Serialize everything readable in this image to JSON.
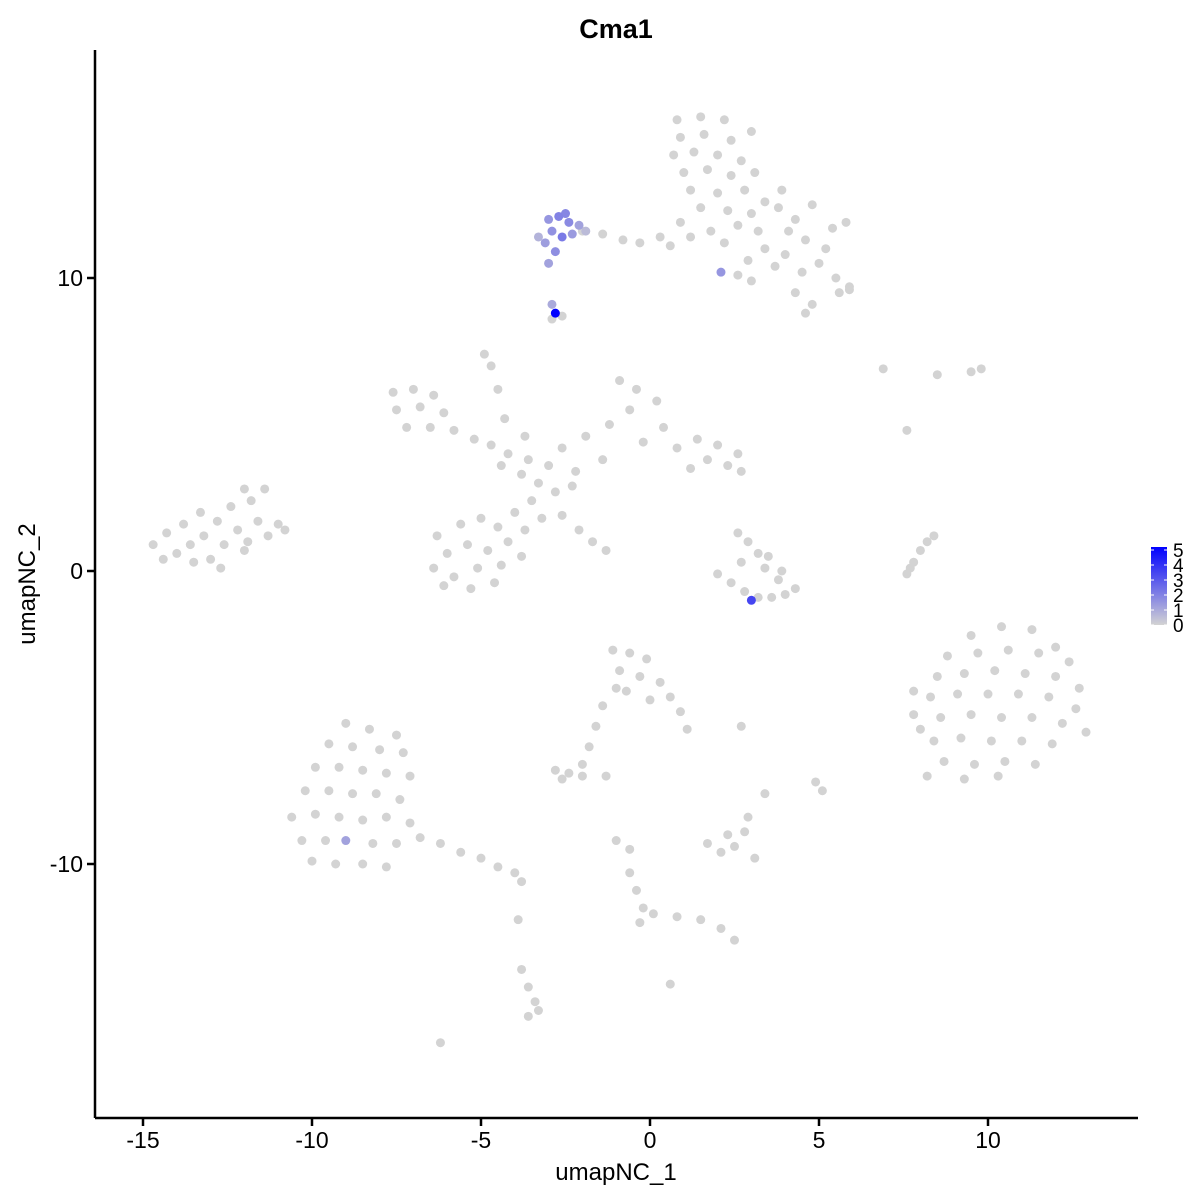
{
  "chart_data": {
    "type": "scatter",
    "title": "Cma1",
    "xlabel": "umapNC_1",
    "ylabel": "umapNC_2",
    "xlim": [
      -16.4,
      14.4
    ],
    "ylim": [
      -18.6,
      17.8
    ],
    "x_ticks": [
      -15,
      -10,
      -5,
      0,
      5,
      10
    ],
    "y_ticks": [
      -10,
      0,
      10
    ],
    "x_tick_labels": [
      "-15",
      "-10",
      "-5",
      "0",
      "5",
      "10"
    ],
    "y_tick_labels": [
      "-10",
      "0",
      "10"
    ],
    "grid": false,
    "color_scale": {
      "low": "#D3D3D3",
      "high": "#0000FF",
      "min": 0,
      "max": 5.2
    },
    "legend": {
      "placement": "right",
      "ticks": [
        0,
        1,
        2,
        3,
        4,
        5
      ],
      "labels": [
        "0",
        "1",
        "2",
        "3",
        "4",
        "5"
      ]
    },
    "cells_zero": [
      [
        0.8,
        15.4
      ],
      [
        1.5,
        15.5
      ],
      [
        2.2,
        15.4
      ],
      [
        0.9,
        14.8
      ],
      [
        1.6,
        14.9
      ],
      [
        2.4,
        14.7
      ],
      [
        3.0,
        15.0
      ],
      [
        0.7,
        14.2
      ],
      [
        1.3,
        14.3
      ],
      [
        2.0,
        14.2
      ],
      [
        2.7,
        14.0
      ],
      [
        1.0,
        13.6
      ],
      [
        1.7,
        13.7
      ],
      [
        2.4,
        13.5
      ],
      [
        3.1,
        13.6
      ],
      [
        1.2,
        13.0
      ],
      [
        2.0,
        12.9
      ],
      [
        2.8,
        13.0
      ],
      [
        3.4,
        12.6
      ],
      [
        1.5,
        12.4
      ],
      [
        2.3,
        12.3
      ],
      [
        3.0,
        12.2
      ],
      [
        3.8,
        12.4
      ],
      [
        4.3,
        12.0
      ],
      [
        4.8,
        12.5
      ],
      [
        5.4,
        11.7
      ],
      [
        5.8,
        11.9
      ],
      [
        4.6,
        11.3
      ],
      [
        5.2,
        11.0
      ],
      [
        4.0,
        10.8
      ],
      [
        4.5,
        10.2
      ],
      [
        5.0,
        10.5
      ],
      [
        5.5,
        10.0
      ],
      [
        5.9,
        9.7
      ],
      [
        4.3,
        9.5
      ],
      [
        4.8,
        9.1
      ],
      [
        3.7,
        10.4
      ],
      [
        3.2,
        11.6
      ],
      [
        2.6,
        11.8
      ],
      [
        1.8,
        11.6
      ],
      [
        1.2,
        11.4
      ],
      [
        0.9,
        11.9
      ],
      [
        2.2,
        11.2
      ],
      [
        2.9,
        10.6
      ],
      [
        3.4,
        11.0
      ],
      [
        4.1,
        11.6
      ],
      [
        5.6,
        9.5
      ],
      [
        4.6,
        8.8
      ],
      [
        5.9,
        9.6
      ],
      [
        3.9,
        13.0
      ],
      [
        -2.0,
        11.6
      ],
      [
        -1.4,
        11.5
      ],
      [
        -0.8,
        11.3
      ],
      [
        -0.3,
        11.2
      ],
      [
        0.3,
        11.4
      ],
      [
        0.6,
        11.1
      ],
      [
        2.6,
        10.1
      ],
      [
        3.0,
        9.9
      ],
      [
        -2.9,
        8.6
      ],
      [
        -2.6,
        8.7
      ],
      [
        -7.6,
        6.1
      ],
      [
        -7.0,
        6.2
      ],
      [
        -6.4,
        6.0
      ],
      [
        -7.5,
        5.5
      ],
      [
        -6.8,
        5.6
      ],
      [
        -6.1,
        5.4
      ],
      [
        -7.2,
        4.9
      ],
      [
        -6.5,
        4.9
      ],
      [
        -5.8,
        4.8
      ],
      [
        -5.2,
        4.5
      ],
      [
        -4.7,
        4.3
      ],
      [
        -4.2,
        4.0
      ],
      [
        -3.6,
        3.8
      ],
      [
        -3.0,
        3.6
      ],
      [
        -3.8,
        3.3
      ],
      [
        -3.3,
        3.0
      ],
      [
        -2.8,
        2.7
      ],
      [
        -2.3,
        2.9
      ],
      [
        -4.4,
        3.6
      ],
      [
        -4.9,
        7.4
      ],
      [
        -4.7,
        7.0
      ],
      [
        -4.5,
        6.2
      ],
      [
        -4.3,
        5.2
      ],
      [
        -3.7,
        4.6
      ],
      [
        -2.6,
        4.2
      ],
      [
        -1.9,
        4.6
      ],
      [
        -1.2,
        5.0
      ],
      [
        -0.6,
        5.5
      ],
      [
        -0.4,
        6.2
      ],
      [
        -0.9,
        6.5
      ],
      [
        0.2,
        5.8
      ],
      [
        0.4,
        4.9
      ],
      [
        -0.2,
        4.4
      ],
      [
        0.8,
        4.2
      ],
      [
        1.4,
        4.5
      ],
      [
        2.0,
        4.3
      ],
      [
        2.6,
        4.0
      ],
      [
        2.3,
        3.6
      ],
      [
        1.7,
        3.8
      ],
      [
        2.7,
        3.4
      ],
      [
        1.2,
        3.5
      ],
      [
        -1.4,
        3.8
      ],
      [
        -2.2,
        3.4
      ],
      [
        -3.5,
        2.4
      ],
      [
        -4.0,
        2.0
      ],
      [
        -4.5,
        1.5
      ],
      [
        -5.0,
        1.8
      ],
      [
        -5.6,
        1.6
      ],
      [
        -6.3,
        1.2
      ],
      [
        -6.0,
        0.6
      ],
      [
        -5.4,
        0.9
      ],
      [
        -4.8,
        0.7
      ],
      [
        -4.2,
        1.0
      ],
      [
        -3.7,
        1.4
      ],
      [
        -6.4,
        0.1
      ],
      [
        -5.8,
        -0.2
      ],
      [
        -5.1,
        0.1
      ],
      [
        -4.4,
        0.2
      ],
      [
        -3.8,
        0.5
      ],
      [
        -6.1,
        -0.5
      ],
      [
        -5.3,
        -0.6
      ],
      [
        -4.6,
        -0.4
      ],
      [
        -2.6,
        1.9
      ],
      [
        -2.1,
        1.4
      ],
      [
        -1.7,
        1.0
      ],
      [
        -1.3,
        0.7
      ],
      [
        -3.2,
        1.8
      ],
      [
        -14.7,
        0.9
      ],
      [
        -14.3,
        1.3
      ],
      [
        -14.0,
        0.6
      ],
      [
        -13.8,
        1.6
      ],
      [
        -13.6,
        0.9
      ],
      [
        -13.3,
        2.0
      ],
      [
        -13.2,
        1.2
      ],
      [
        -13.0,
        0.4
      ],
      [
        -12.8,
        1.7
      ],
      [
        -12.6,
        0.9
      ],
      [
        -12.4,
        2.2
      ],
      [
        -12.2,
        1.4
      ],
      [
        -12.0,
        0.7
      ],
      [
        -11.8,
        2.4
      ],
      [
        -11.6,
        1.7
      ],
      [
        -11.4,
        2.8
      ],
      [
        -11.3,
        1.2
      ],
      [
        -11.0,
        1.6
      ],
      [
        -10.8,
        1.4
      ],
      [
        -12.7,
        0.1
      ],
      [
        -13.5,
        0.3
      ],
      [
        -14.4,
        0.4
      ],
      [
        -12.0,
        2.8
      ],
      [
        -11.9,
        1.0
      ],
      [
        2.0,
        -0.1
      ],
      [
        2.4,
        -0.4
      ],
      [
        2.8,
        -0.7
      ],
      [
        3.2,
        -0.9
      ],
      [
        3.6,
        -0.9
      ],
      [
        4.0,
        -0.8
      ],
      [
        4.3,
        -0.6
      ],
      [
        3.8,
        -0.3
      ],
      [
        3.4,
        0.1
      ],
      [
        3.2,
        0.6
      ],
      [
        2.9,
        1.0
      ],
      [
        2.6,
        1.3
      ],
      [
        3.5,
        0.5
      ],
      [
        2.7,
        0.3
      ],
      [
        3.9,
        0.0
      ],
      [
        7.6,
        -0.1
      ],
      [
        7.8,
        0.3
      ],
      [
        8.0,
        0.7
      ],
      [
        8.2,
        1.0
      ],
      [
        8.4,
        1.2
      ],
      [
        7.7,
        0.1
      ],
      [
        9.5,
        -2.2
      ],
      [
        10.4,
        -1.9
      ],
      [
        11.3,
        -2.0
      ],
      [
        12.0,
        -2.6
      ],
      [
        8.8,
        -2.9
      ],
      [
        9.7,
        -2.8
      ],
      [
        10.6,
        -2.7
      ],
      [
        11.5,
        -2.8
      ],
      [
        12.4,
        -3.1
      ],
      [
        7.8,
        -4.1
      ],
      [
        8.5,
        -3.6
      ],
      [
        9.3,
        -3.5
      ],
      [
        10.2,
        -3.4
      ],
      [
        11.1,
        -3.5
      ],
      [
        12.0,
        -3.6
      ],
      [
        12.7,
        -4.0
      ],
      [
        8.3,
        -4.3
      ],
      [
        9.1,
        -4.2
      ],
      [
        10.0,
        -4.2
      ],
      [
        10.9,
        -4.2
      ],
      [
        11.8,
        -4.3
      ],
      [
        12.6,
        -4.7
      ],
      [
        8.6,
        -5.0
      ],
      [
        9.5,
        -4.9
      ],
      [
        10.4,
        -5.0
      ],
      [
        11.3,
        -5.0
      ],
      [
        12.2,
        -5.2
      ],
      [
        8.4,
        -5.8
      ],
      [
        9.2,
        -5.7
      ],
      [
        10.1,
        -5.8
      ],
      [
        11.0,
        -5.8
      ],
      [
        11.9,
        -5.9
      ],
      [
        8.7,
        -6.5
      ],
      [
        9.6,
        -6.6
      ],
      [
        10.5,
        -6.5
      ],
      [
        11.4,
        -6.6
      ],
      [
        8.2,
        -7.0
      ],
      [
        9.3,
        -7.1
      ],
      [
        10.3,
        -7.0
      ],
      [
        7.8,
        -4.9
      ],
      [
        8.0,
        -5.4
      ],
      [
        12.9,
        -5.5
      ],
      [
        -1.1,
        -2.7
      ],
      [
        -0.6,
        -2.8
      ],
      [
        -0.1,
        -3.0
      ],
      [
        -0.9,
        -3.4
      ],
      [
        -0.3,
        -3.6
      ],
      [
        0.3,
        -3.8
      ],
      [
        -0.7,
        -4.1
      ],
      [
        0.0,
        -4.4
      ],
      [
        0.6,
        -4.3
      ],
      [
        0.9,
        -4.8
      ],
      [
        1.1,
        -5.4
      ],
      [
        -1.0,
        -4.0
      ],
      [
        -1.4,
        -4.6
      ],
      [
        -1.6,
        -5.3
      ],
      [
        -1.8,
        -6.0
      ],
      [
        -2.0,
        -6.6
      ],
      [
        -2.8,
        -6.8
      ],
      [
        -2.4,
        -6.9
      ],
      [
        -2.0,
        -7.0
      ],
      [
        -2.6,
        -7.1
      ],
      [
        -9.0,
        -5.2
      ],
      [
        -8.3,
        -5.4
      ],
      [
        -7.5,
        -5.6
      ],
      [
        -9.5,
        -5.9
      ],
      [
        -8.8,
        -6.0
      ],
      [
        -8.0,
        -6.1
      ],
      [
        -7.3,
        -6.2
      ],
      [
        -9.9,
        -6.7
      ],
      [
        -9.2,
        -6.7
      ],
      [
        -8.5,
        -6.8
      ],
      [
        -7.8,
        -6.9
      ],
      [
        -7.1,
        -7.0
      ],
      [
        -10.2,
        -7.5
      ],
      [
        -9.5,
        -7.5
      ],
      [
        -8.8,
        -7.6
      ],
      [
        -8.1,
        -7.6
      ],
      [
        -7.4,
        -7.8
      ],
      [
        -10.6,
        -8.4
      ],
      [
        -9.9,
        -8.3
      ],
      [
        -9.2,
        -8.4
      ],
      [
        -8.5,
        -8.5
      ],
      [
        -7.8,
        -8.4
      ],
      [
        -7.1,
        -8.6
      ],
      [
        -10.3,
        -9.2
      ],
      [
        -9.6,
        -9.2
      ],
      [
        -8.2,
        -9.3
      ],
      [
        -7.5,
        -9.3
      ],
      [
        -10.0,
        -9.9
      ],
      [
        -9.3,
        -10.0
      ],
      [
        -8.5,
        -10.0
      ],
      [
        -7.8,
        -10.1
      ],
      [
        -6.8,
        -9.1
      ],
      [
        -6.2,
        -9.3
      ],
      [
        -5.6,
        -9.6
      ],
      [
        -5.0,
        -9.8
      ],
      [
        -4.5,
        -10.1
      ],
      [
        -4.0,
        -10.3
      ],
      [
        -3.8,
        -10.6
      ],
      [
        1.7,
        -9.3
      ],
      [
        2.1,
        -9.6
      ],
      [
        2.5,
        -9.4
      ],
      [
        2.8,
        -8.9
      ],
      [
        2.9,
        -8.4
      ],
      [
        2.3,
        -9.0
      ],
      [
        3.1,
        -9.8
      ],
      [
        3.4,
        -7.6
      ],
      [
        -3.8,
        -13.6
      ],
      [
        -3.6,
        -14.2
      ],
      [
        -3.4,
        -14.7
      ],
      [
        -3.3,
        -15.0
      ],
      [
        -3.6,
        -15.2
      ],
      [
        -0.6,
        -10.3
      ],
      [
        -0.4,
        -10.9
      ],
      [
        -0.2,
        -11.5
      ],
      [
        -0.3,
        -12.0
      ],
      [
        0.1,
        -11.7
      ],
      [
        0.8,
        -11.8
      ],
      [
        1.5,
        -11.9
      ],
      [
        2.1,
        -12.2
      ],
      [
        2.5,
        -12.6
      ],
      [
        -0.6,
        -9.5
      ],
      [
        -1.0,
        -9.2
      ],
      [
        6.9,
        6.9
      ],
      [
        8.5,
        6.7
      ],
      [
        9.5,
        6.8
      ],
      [
        9.8,
        6.9
      ],
      [
        7.6,
        4.8
      ],
      [
        4.9,
        -7.2
      ],
      [
        5.1,
        -7.5
      ],
      [
        2.7,
        -5.3
      ],
      [
        -6.2,
        -16.1
      ],
      [
        0.6,
        -14.1
      ],
      [
        -3.9,
        -11.9
      ],
      [
        -1.3,
        -7.0
      ]
    ],
    "cells_expressing": [
      [
        -3.0,
        12.0,
        1.5
      ],
      [
        -2.7,
        12.1,
        2.0
      ],
      [
        -2.4,
        11.9,
        1.8
      ],
      [
        -2.1,
        11.8,
        1.2
      ],
      [
        -2.9,
        11.6,
        1.6
      ],
      [
        -2.6,
        11.4,
        2.2
      ],
      [
        -2.3,
        11.5,
        1.4
      ],
      [
        -3.1,
        11.2,
        1.3
      ],
      [
        -2.8,
        10.9,
        1.7
      ],
      [
        -3.0,
        10.5,
        1.2
      ],
      [
        -2.5,
        12.2,
        1.9
      ],
      [
        -1.9,
        11.6,
        0.6
      ],
      [
        -3.3,
        11.4,
        0.8
      ],
      [
        2.1,
        10.2,
        1.5
      ],
      [
        -2.9,
        9.1,
        1.0
      ],
      [
        -2.8,
        8.8,
        5.2
      ],
      [
        3.0,
        -1.0,
        3.5
      ],
      [
        -9.0,
        -9.2,
        1.2
      ]
    ]
  }
}
